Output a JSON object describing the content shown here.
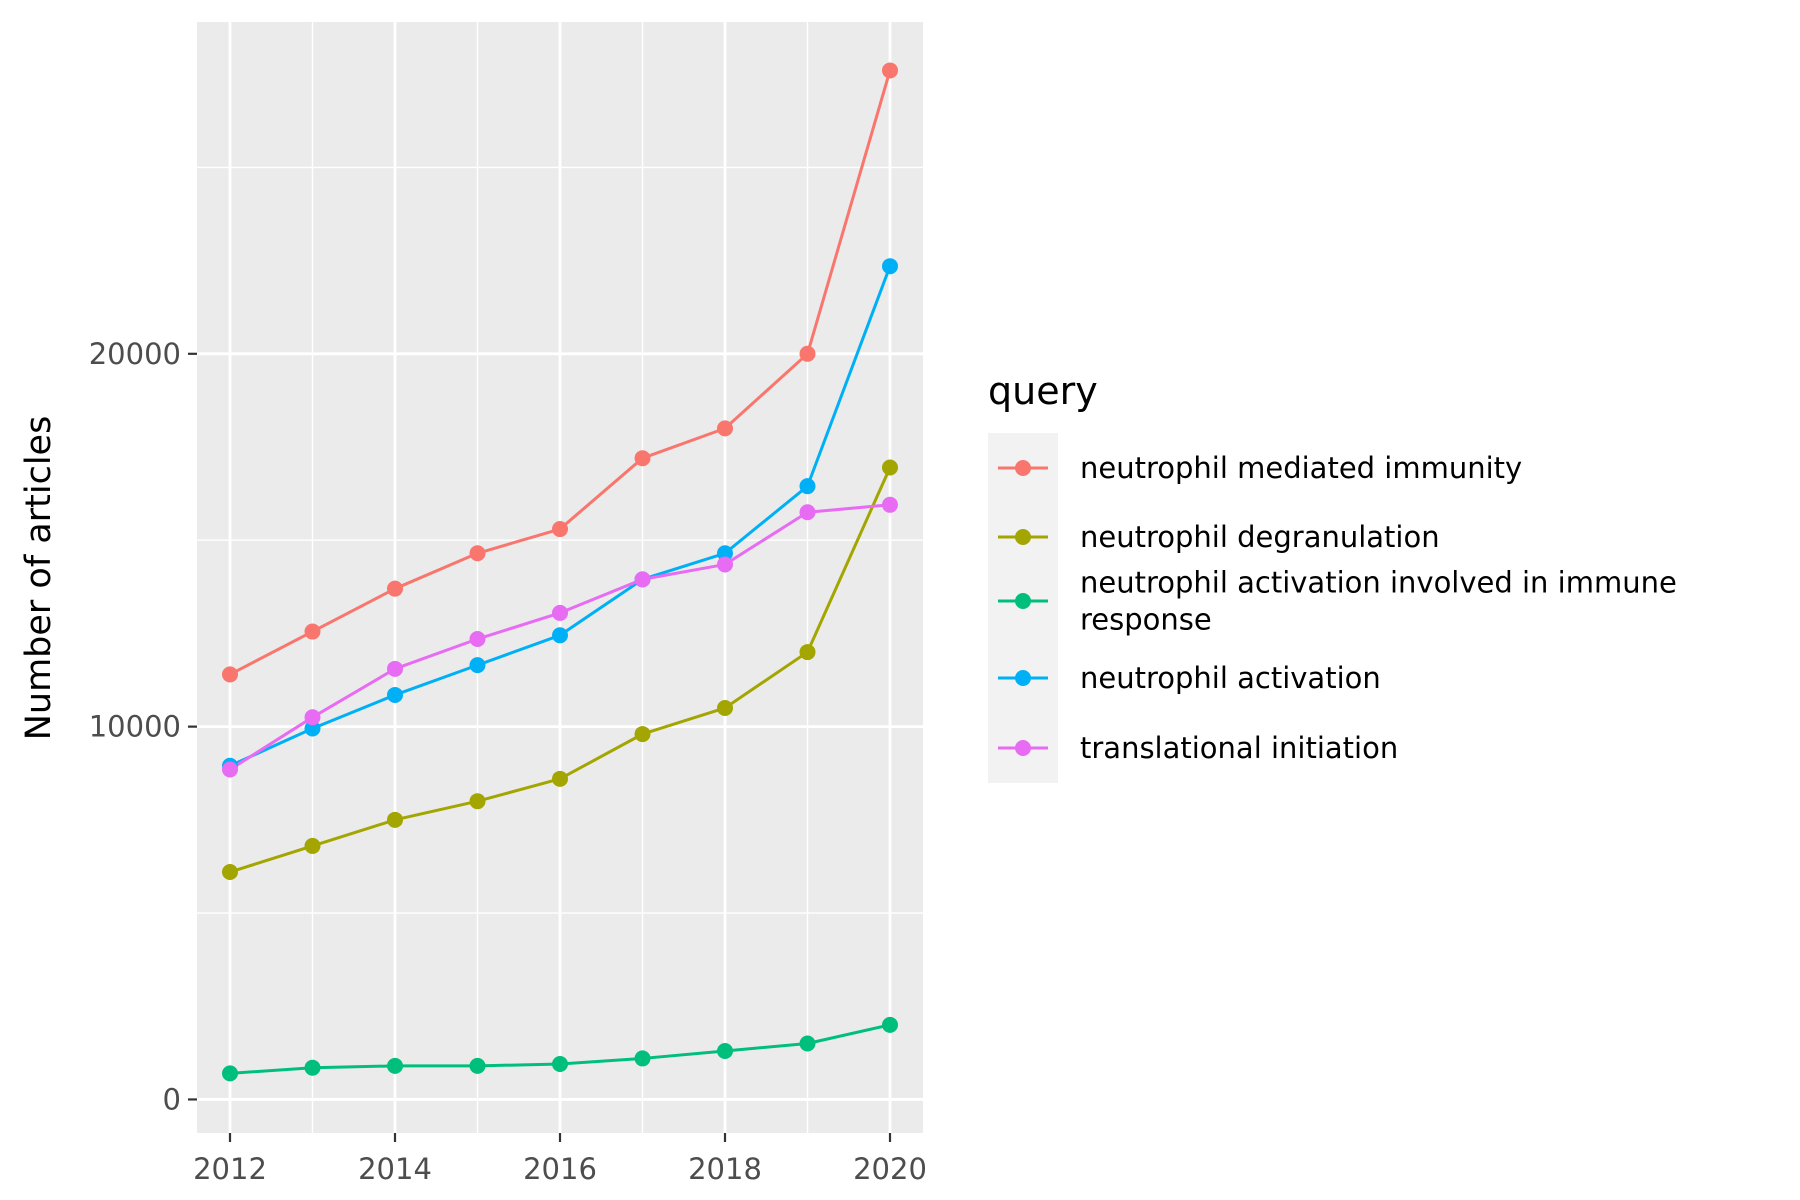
{
  "chart_data": {
    "type": "line",
    "xlabel": "",
    "ylabel": "Number of articles",
    "x": [
      2012,
      2013,
      2014,
      2015,
      2016,
      2017,
      2018,
      2019,
      2020
    ],
    "x_ticks": [
      "2012",
      "2014",
      "2016",
      "2018",
      "2020"
    ],
    "y_ticks": [
      "0",
      "10000",
      "20000"
    ],
    "xlim": [
      2011.6,
      2020.4
    ],
    "ylim": [
      -900,
      28900
    ],
    "grid": true,
    "legend": {
      "title": "query",
      "placement": "right"
    },
    "series": [
      {
        "name": "neutrophil mediated immunity",
        "color": "#F8766D",
        "values": [
          11400,
          12550,
          13700,
          14650,
          15300,
          17200,
          18000,
          20000,
          27600
        ]
      },
      {
        "name": "neutrophil degranulation",
        "color": "#A3A500",
        "values": [
          6100,
          6800,
          7500,
          8000,
          8600,
          9800,
          10500,
          12000,
          16950
        ]
      },
      {
        "name": "neutrophil activation involved in immune response",
        "color": "#00BF7D",
        "values": [
          700,
          850,
          900,
          900,
          950,
          1100,
          1300,
          1500,
          2000
        ]
      },
      {
        "name": "neutrophil activation",
        "color": "#00B0F6",
        "values": [
          8950,
          9950,
          10850,
          11650,
          12450,
          13950,
          14650,
          16450,
          22350
        ]
      },
      {
        "name": "translational initiation",
        "color": "#E76BF3",
        "values": [
          8850,
          10250,
          11550,
          12350,
          13050,
          13950,
          14350,
          15750,
          15950
        ]
      }
    ]
  }
}
